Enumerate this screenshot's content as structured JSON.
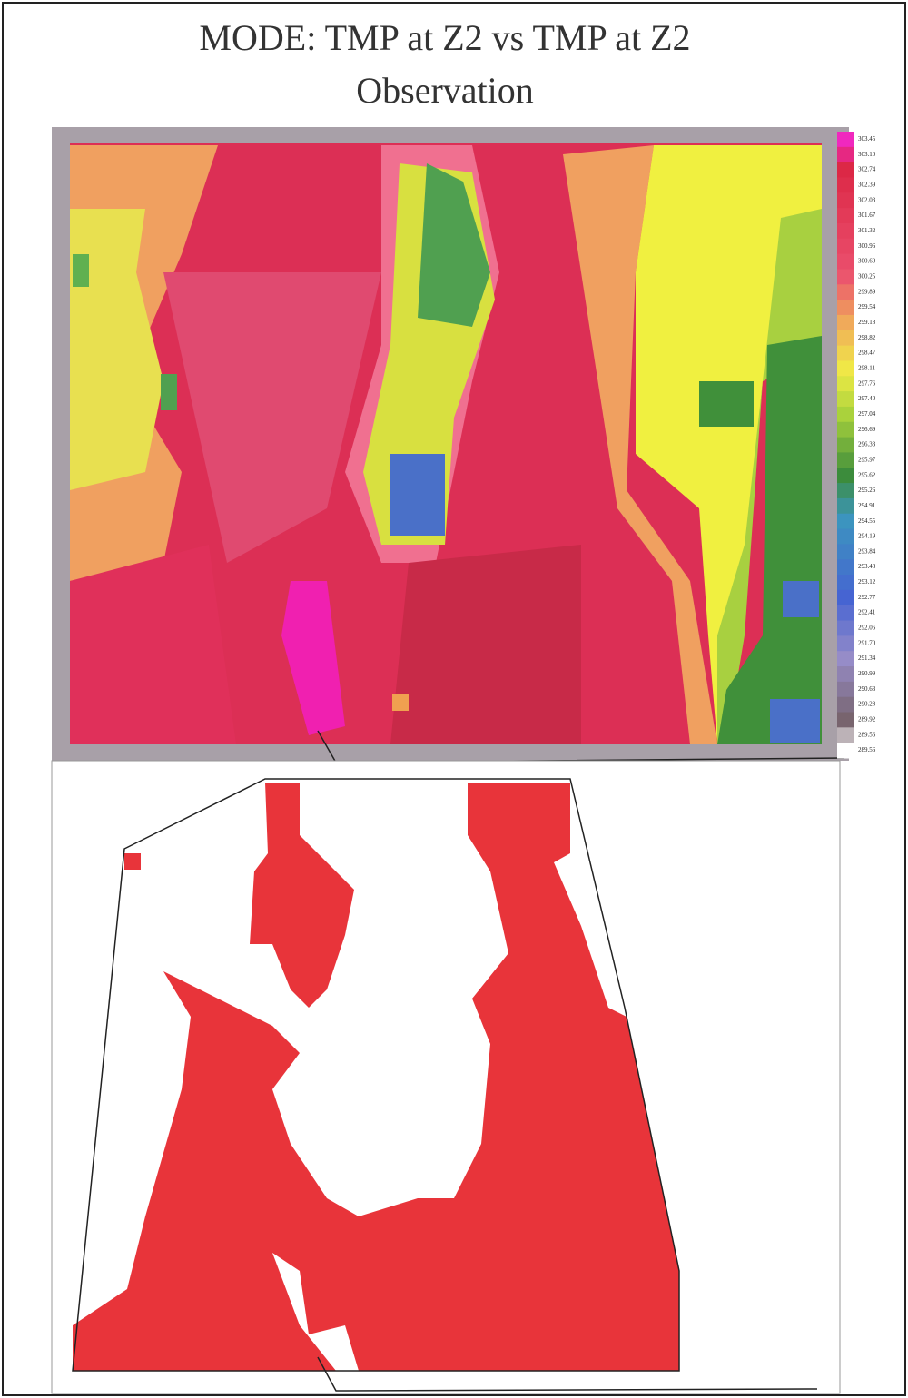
{
  "title": "MODE: TMP at Z2 vs TMP at Z2",
  "subtitle": "Observation",
  "colorbar": {
    "labels": [
      "303.45",
      "303.10",
      "302.74",
      "302.39",
      "302.03",
      "301.67",
      "301.32",
      "300.96",
      "300.60",
      "300.25",
      "299.89",
      "299.54",
      "299.18",
      "298.82",
      "298.47",
      "298.11",
      "297.76",
      "297.40",
      "297.04",
      "296.69",
      "296.33",
      "295.97",
      "295.62",
      "295.26",
      "294.91",
      "294.55",
      "294.19",
      "293.84",
      "293.48",
      "293.12",
      "292.77",
      "292.41",
      "292.06",
      "291.70",
      "291.34",
      "290.99",
      "290.63",
      "290.28",
      "289.92",
      "289.56",
      "289.56"
    ]
  }
}
